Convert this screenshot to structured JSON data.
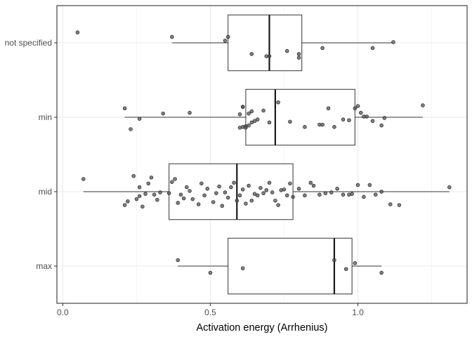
{
  "chart_data": {
    "type": "box",
    "orientation": "horizontal",
    "xlabel": "Activation energy (Arrhenius)",
    "ylabel": "",
    "xlim": [
      -0.02,
      1.37
    ],
    "x_ticks": [
      {
        "value": 0.0,
        "label": "0.0"
      },
      {
        "value": 0.5,
        "label": "0.5"
      },
      {
        "value": 1.0,
        "label": "1.0"
      }
    ],
    "x_minor_ticks": [
      0.25,
      0.75,
      1.25
    ],
    "categories": [
      "not specified",
      "min",
      "mid",
      "max"
    ],
    "grid": true,
    "theme": "bw",
    "colors": {
      "box_line": "#333333",
      "point": "#555555",
      "grid_major": "#ebebeb",
      "grid_minor": "#f5f5f5",
      "panel_border": "#333333"
    },
    "boxes": [
      {
        "category": "not specified",
        "whisker_low": 0.37,
        "q1": 0.56,
        "median": 0.7,
        "q3": 0.81,
        "whisker_high": 1.12
      },
      {
        "category": "min",
        "whisker_low": 0.21,
        "q1": 0.62,
        "median": 0.72,
        "q3": 0.99,
        "whisker_high": 1.22
      },
      {
        "category": "mid",
        "whisker_low": 0.07,
        "q1": 0.36,
        "median": 0.59,
        "q3": 0.78,
        "whisker_high": 1.31
      },
      {
        "category": "max",
        "whisker_low": 0.39,
        "q1": 0.56,
        "median": 0.92,
        "q3": 0.98,
        "whisker_high": 1.08
      }
    ],
    "points": [
      {
        "category": "not specified",
        "values": [
          0.05,
          0.55,
          0.56,
          0.37,
          0.64,
          0.69,
          0.7,
          0.76,
          0.8,
          0.8,
          0.88,
          1.05,
          1.12
        ],
        "jitter": [
          -0.14,
          -0.03,
          -0.08,
          -0.08,
          0.15,
          0.18,
          0.18,
          0.11,
          0.15,
          0.2,
          0.07,
          0.07,
          -0.01
        ]
      }
    ]
  }
}
